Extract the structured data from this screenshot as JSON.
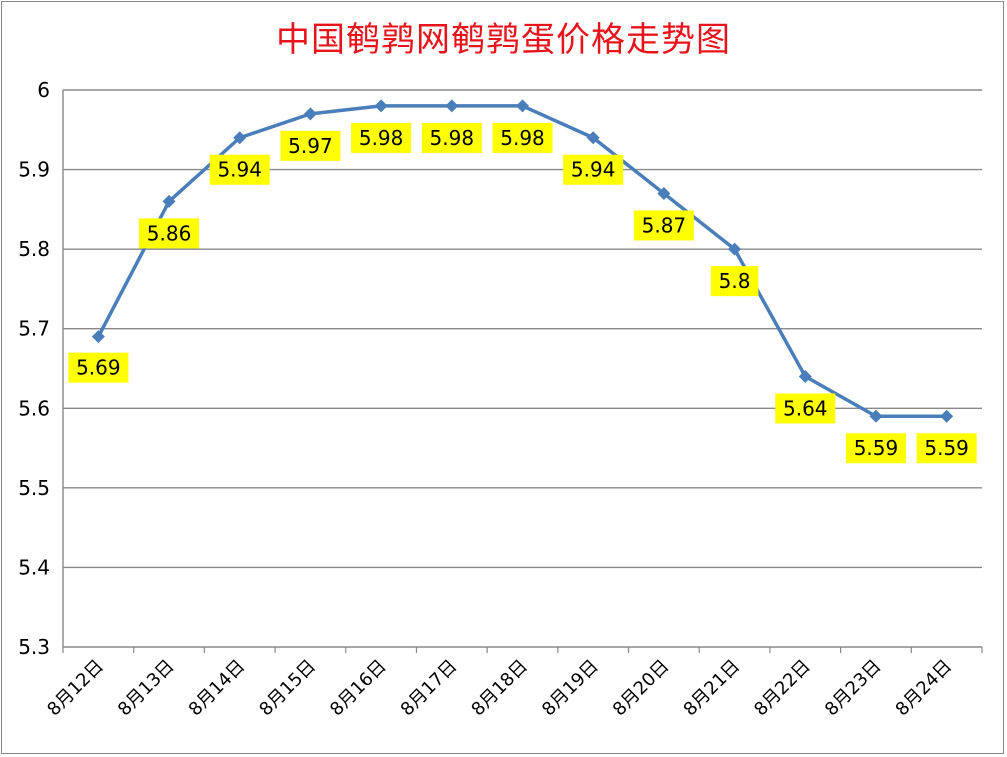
{
  "chart_data": {
    "type": "line",
    "title": "中国鹌鹑网鹌鹑蛋价格走势图",
    "categories": [
      "8月12日",
      "8月13日",
      "8月14日",
      "8月15日",
      "8月16日",
      "8月17日",
      "8月18日",
      "8月19日",
      "8月20日",
      "8月21日",
      "8月22日",
      "8月23日",
      "8月24日"
    ],
    "values": [
      5.69,
      5.86,
      5.94,
      5.97,
      5.98,
      5.98,
      5.98,
      5.94,
      5.87,
      5.8,
      5.64,
      5.59,
      5.59
    ],
    "data_labels": [
      "5.69",
      "5.86",
      "5.94",
      "5.97",
      "5.98",
      "5.98",
      "5.98",
      "5.94",
      "5.87",
      "5.8",
      "5.64",
      "5.59",
      "5.59"
    ],
    "yticks": [
      "5.3",
      "5.4",
      "5.5",
      "5.6",
      "5.7",
      "5.8",
      "5.9",
      "6"
    ],
    "ylim": [
      5.3,
      6
    ],
    "xlabel": "",
    "ylabel": "",
    "grid": true,
    "legend": "none",
    "line_color": "#4a7ebb",
    "label_background": "#ffff00",
    "title_color": "#e8141b"
  }
}
